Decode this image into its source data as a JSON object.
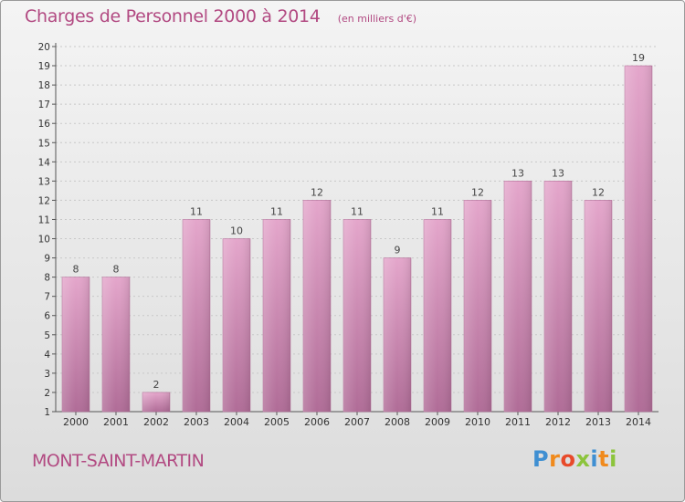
{
  "header": {
    "title": "Charges de Personnel 2000 à 2014",
    "unit": "(en milliers d'€)"
  },
  "footer": {
    "place": "MONT-SAINT-MARTIN",
    "brand": "Proxiti"
  },
  "colors": {
    "accent": "#b24a82",
    "bar_top": "#e4a6cb",
    "bar_bottom": "#b06c97",
    "brand_letters": [
      "#3f8fd2",
      "#f08a1c",
      "#e84a2a",
      "#8cc43c",
      "#3f8fd2",
      "#f08a1c",
      "#8cc43c"
    ]
  },
  "chart_data": {
    "type": "bar",
    "title": "Charges de Personnel 2000 à 2014",
    "subtitle": "(en milliers d'€)",
    "categories": [
      "2000",
      "2001",
      "2002",
      "2003",
      "2004",
      "2005",
      "2006",
      "2007",
      "2008",
      "2009",
      "2010",
      "2011",
      "2012",
      "2013",
      "2014"
    ],
    "values": [
      8,
      8,
      2,
      11,
      10,
      11,
      12,
      11,
      9,
      11,
      12,
      13,
      13,
      12,
      19
    ],
    "ylim": [
      1,
      20
    ],
    "yticks": [
      "1",
      "2",
      "3",
      "4",
      "5",
      "6",
      "7",
      "8",
      "9",
      "10",
      "11",
      "12",
      "13",
      "14",
      "15",
      "16",
      "17",
      "18",
      "19",
      "20"
    ],
    "grid": true
  }
}
